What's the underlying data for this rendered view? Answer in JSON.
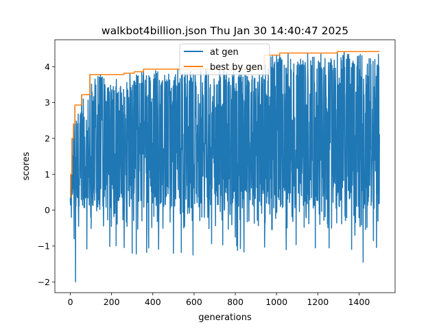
{
  "chart_data": {
    "type": "line",
    "title": "walkbot4billion.json Thu Jan 30 14:40:47 2025",
    "xlabel": "generations",
    "ylabel": "scores",
    "xlim": [
      -75,
      1575
    ],
    "ylim": [
      -2.3,
      4.75
    ],
    "xticks": [
      0,
      200,
      400,
      600,
      800,
      1000,
      1200,
      1400
    ],
    "yticks": [
      -2,
      -1,
      0,
      1,
      2,
      3,
      4
    ],
    "xtick_labels": [
      "0",
      "200",
      "400",
      "600",
      "800",
      "1000",
      "1200",
      "1400"
    ],
    "ytick_labels": [
      "−2",
      "−1",
      "0",
      "1",
      "2",
      "3",
      "4"
    ],
    "grid": false,
    "legend_position": "top-center",
    "series": [
      {
        "name": "at gen",
        "color": "#1f77b4",
        "n_points": 1500,
        "min": -2.0,
        "max": 4.42,
        "notable_points": [
          {
            "x": 0,
            "y": 0.35
          },
          {
            "x": 2,
            "y": 1.0
          },
          {
            "x": 5,
            "y": -0.2
          },
          {
            "x": 8,
            "y": 2.0
          },
          {
            "x": 12,
            "y": 0.9
          },
          {
            "x": 15,
            "y": 2.4
          },
          {
            "x": 18,
            "y": -0.8
          },
          {
            "x": 22,
            "y": 2.9
          },
          {
            "x": 25,
            "y": -2.0
          },
          {
            "x": 30,
            "y": 1.6
          },
          {
            "x": 40,
            "y": -0.45
          },
          {
            "x": 55,
            "y": 3.2
          },
          {
            "x": 95,
            "y": 3.78
          },
          {
            "x": 300,
            "y": -1.2
          },
          {
            "x": 320,
            "y": -1.22
          },
          {
            "x": 355,
            "y": 3.93
          },
          {
            "x": 500,
            "y": -1.2
          },
          {
            "x": 595,
            "y": -1.25
          },
          {
            "x": 800,
            "y": -0.75
          },
          {
            "x": 825,
            "y": -1.07
          },
          {
            "x": 1000,
            "y": 4.35
          },
          {
            "x": 1015,
            "y": 4.38
          },
          {
            "x": 1255,
            "y": -1.05
          },
          {
            "x": 1295,
            "y": 4.42
          },
          {
            "x": 1380,
            "y": -0.7
          },
          {
            "x": 1420,
            "y": -1.45
          },
          {
            "x": 1470,
            "y": -0.85
          },
          {
            "x": 1500,
            "y": 4.42
          }
        ]
      },
      {
        "name": "best by gen",
        "color": "#ff7f0e",
        "points": [
          [
            0,
            0.35
          ],
          [
            2,
            1.0
          ],
          [
            8,
            2.0
          ],
          [
            15,
            2.4
          ],
          [
            22,
            2.93
          ],
          [
            55,
            3.22
          ],
          [
            95,
            3.78
          ],
          [
            260,
            3.82
          ],
          [
            310,
            3.86
          ],
          [
            355,
            3.93
          ],
          [
            940,
            4.32
          ],
          [
            1015,
            4.38
          ],
          [
            1295,
            4.42
          ],
          [
            1500,
            4.42
          ]
        ]
      }
    ]
  }
}
